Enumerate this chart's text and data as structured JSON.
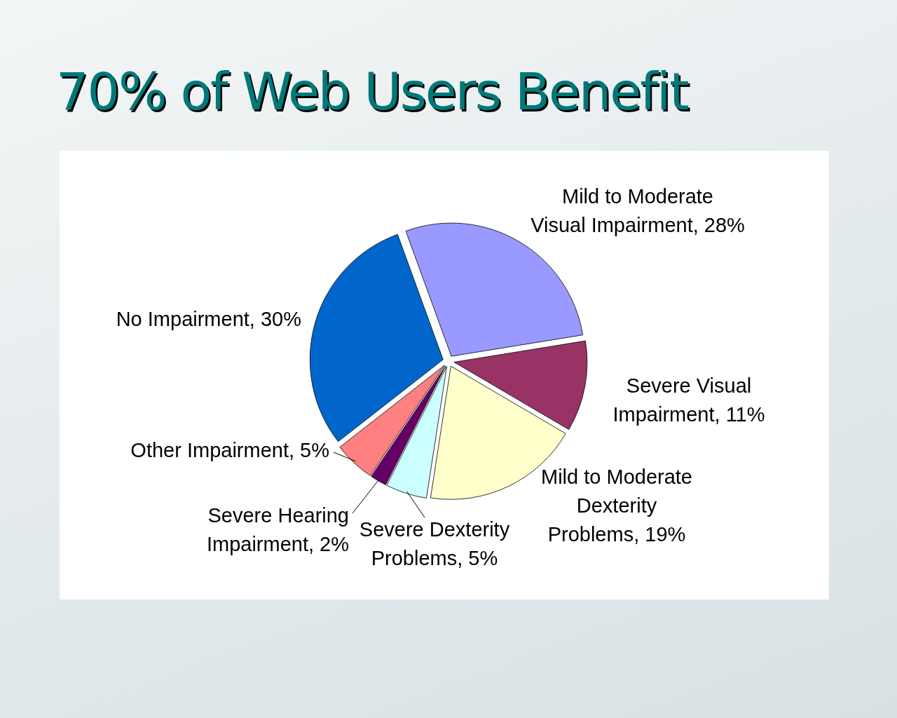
{
  "chart_data": {
    "type": "pie",
    "title": "70% of Web Users Benefit",
    "categories": [
      "Mild to Moderate Visual Impairment",
      "Severe Visual Impairment",
      "Mild to Moderate Dexterity Problems",
      "Severe Dexterity Problems",
      "Severe Hearing Impairment",
      "Other Impairment",
      "No Impairment"
    ],
    "values": [
      28,
      11,
      19,
      5,
      2,
      5,
      30
    ],
    "value_labels": [
      "28%",
      "11%",
      "19%",
      "5%",
      "2%",
      "5%",
      "30%"
    ],
    "colors": [
      "#9999ff",
      "#993366",
      "#ffffcc",
      "#ccffff",
      "#660066",
      "#ff8080",
      "#0066cc"
    ]
  }
}
